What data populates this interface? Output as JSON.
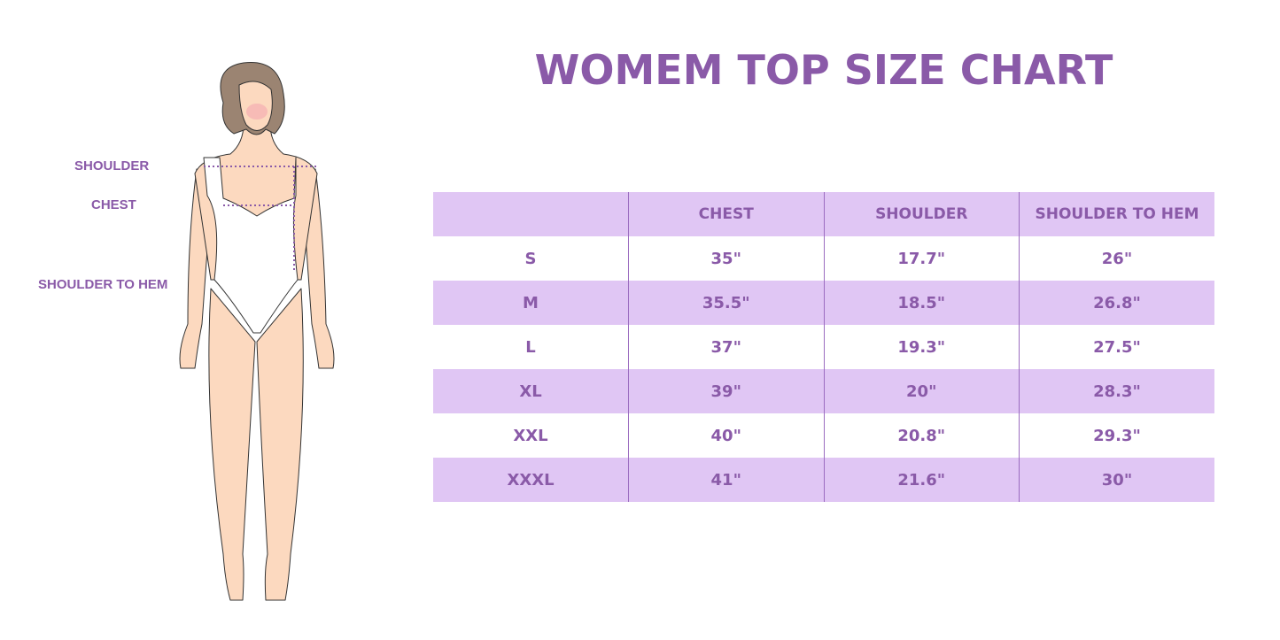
{
  "title": "WOMEM TOP SIZE CHART",
  "measure_labels": {
    "shoulder": "SHOULDER",
    "chest": "CHEST",
    "shoulder_to_hem": "SHOULDER TO HEM"
  },
  "colors": {
    "accent": "#8a5aa8",
    "row_fill": "#e0c6f4",
    "skin": "#fcd9bf",
    "hair": "#9b8472"
  },
  "table": {
    "headers": [
      "",
      "CHEST",
      "SHOULDER",
      "SHOULDER TO HEM"
    ],
    "rows": [
      [
        "S",
        "35\"",
        "17.7\"",
        "26\""
      ],
      [
        "M",
        "35.5\"",
        "18.5\"",
        "26.8\""
      ],
      [
        "L",
        "37\"",
        "19.3\"",
        "27.5\""
      ],
      [
        "XL",
        "39\"",
        "20\"",
        "28.3\""
      ],
      [
        "XXL",
        "40\"",
        "20.8\"",
        "29.3\""
      ],
      [
        "XXXL",
        "41\"",
        "21.6\"",
        "30\""
      ]
    ]
  }
}
